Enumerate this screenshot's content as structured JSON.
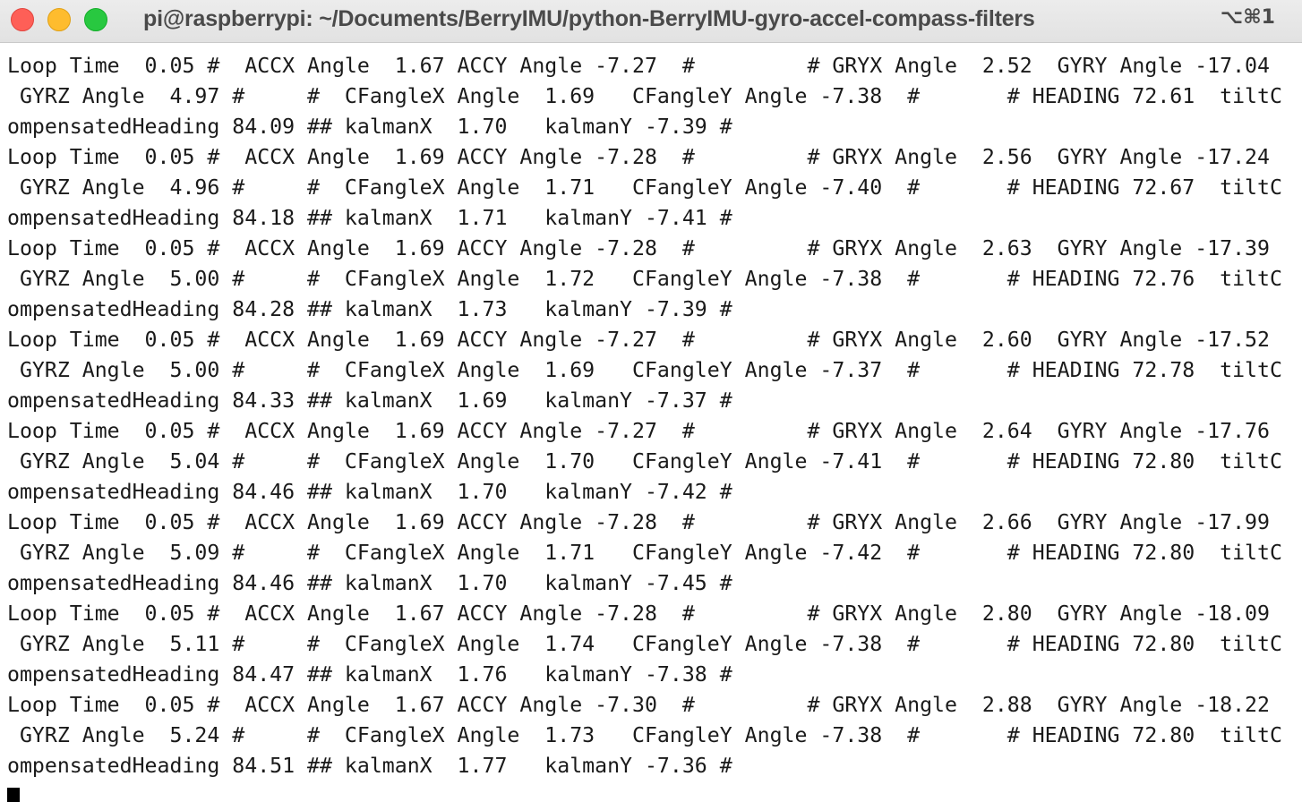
{
  "window": {
    "title": "pi@raspberrypi: ~/Documents/BerryIMU/python-BerryIMU-gyro-accel-compass-filters",
    "shortcut": "⌥⌘1"
  },
  "terminal": {
    "lines": [
      "Loop Time  0.05 #  ACCX Angle  1.67 ACCY Angle -7.27  #         # GRYX Angle  2.52  GYRY Angle -17.04",
      " GYRZ Angle  4.97 #     #  CFangleX Angle  1.69   CFangleY Angle -7.38  #       # HEADING 72.61  tiltC",
      "ompensatedHeading 84.09 ## kalmanX  1.70   kalmanY -7.39 #",
      "Loop Time  0.05 #  ACCX Angle  1.69 ACCY Angle -7.28  #         # GRYX Angle  2.56  GYRY Angle -17.24",
      " GYRZ Angle  4.96 #     #  CFangleX Angle  1.71   CFangleY Angle -7.40  #       # HEADING 72.67  tiltC",
      "ompensatedHeading 84.18 ## kalmanX  1.71   kalmanY -7.41 #",
      "Loop Time  0.05 #  ACCX Angle  1.69 ACCY Angle -7.28  #         # GRYX Angle  2.63  GYRY Angle -17.39",
      " GYRZ Angle  5.00 #     #  CFangleX Angle  1.72   CFangleY Angle -7.38  #       # HEADING 72.76  tiltC",
      "ompensatedHeading 84.28 ## kalmanX  1.73   kalmanY -7.39 #",
      "Loop Time  0.05 #  ACCX Angle  1.69 ACCY Angle -7.27  #         # GRYX Angle  2.60  GYRY Angle -17.52",
      " GYRZ Angle  5.00 #     #  CFangleX Angle  1.69   CFangleY Angle -7.37  #       # HEADING 72.78  tiltC",
      "ompensatedHeading 84.33 ## kalmanX  1.69   kalmanY -7.37 #",
      "Loop Time  0.05 #  ACCX Angle  1.69 ACCY Angle -7.27  #         # GRYX Angle  2.64  GYRY Angle -17.76",
      " GYRZ Angle  5.04 #     #  CFangleX Angle  1.70   CFangleY Angle -7.41  #       # HEADING 72.80  tiltC",
      "ompensatedHeading 84.46 ## kalmanX  1.70   kalmanY -7.42 #",
      "Loop Time  0.05 #  ACCX Angle  1.69 ACCY Angle -7.28  #         # GRYX Angle  2.66  GYRY Angle -17.99",
      " GYRZ Angle  5.09 #     #  CFangleX Angle  1.71   CFangleY Angle -7.42  #       # HEADING 72.80  tiltC",
      "ompensatedHeading 84.46 ## kalmanX  1.70   kalmanY -7.45 #",
      "Loop Time  0.05 #  ACCX Angle  1.67 ACCY Angle -7.28  #         # GRYX Angle  2.80  GYRY Angle -18.09",
      " GYRZ Angle  5.11 #     #  CFangleX Angle  1.74   CFangleY Angle -7.38  #       # HEADING 72.80  tiltC",
      "ompensatedHeading 84.47 ## kalmanX  1.76   kalmanY -7.38 #",
      "Loop Time  0.05 #  ACCX Angle  1.67 ACCY Angle -7.30  #         # GRYX Angle  2.88  GYRY Angle -18.22",
      " GYRZ Angle  5.24 #     #  CFangleX Angle  1.73   CFangleY Angle -7.38  #       # HEADING 72.80  tiltC",
      "ompensatedHeading 84.51 ## kalmanX  1.77   kalmanY -7.36 #"
    ]
  }
}
